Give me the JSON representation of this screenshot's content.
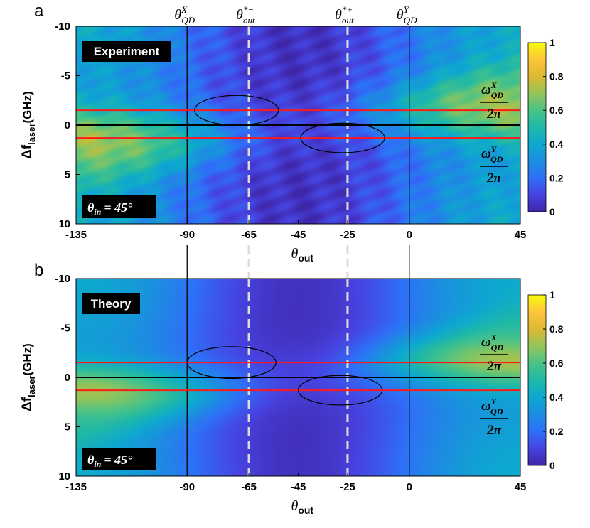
{
  "chart_data": [
    {
      "panel": "a",
      "type": "heatmap",
      "label": "Experiment",
      "condition": {
        "symbol": "θ",
        "sub": "in",
        "value": "= 45°"
      },
      "xlabel": {
        "main": "θ",
        "sub": "out"
      },
      "ylabel": {
        "main": "Δf",
        "sub": "laser",
        "unit": "(GHz)"
      },
      "xlim": [
        -135,
        45
      ],
      "ylim": [
        -10,
        10
      ],
      "xticks": [
        -135,
        -90,
        -65,
        -45,
        -25,
        0,
        45
      ],
      "yticks": [
        -10,
        -5,
        0,
        5,
        10
      ],
      "colorbar": {
        "min": 0,
        "max": 1,
        "ticks": [
          0,
          0.2,
          0.4,
          0.6,
          0.8,
          1
        ]
      },
      "vertical_lines": [
        {
          "x": -90,
          "style": "solid",
          "label": {
            "main": "θ",
            "sup": "X",
            "sub": "QD"
          }
        },
        {
          "x": -65,
          "style": "dashed",
          "label": {
            "main": "θ",
            "sup": "*−",
            "sub": "out"
          }
        },
        {
          "x": -25,
          "style": "dashed",
          "label": {
            "main": "θ",
            "sup": "*+",
            "sub": "out"
          }
        },
        {
          "x": 0,
          "style": "solid",
          "label": {
            "main": "θ",
            "sup": "Y",
            "sub": "QD"
          }
        }
      ],
      "horizontal_lines": [
        {
          "y": -1.5,
          "color": "red",
          "label": {
            "num": "ω",
            "sup": "X",
            "sub": "QD",
            "den": "2π"
          }
        },
        {
          "y": 0,
          "color": "black"
        },
        {
          "y": 1.3,
          "color": "red",
          "label": {
            "num": "ω",
            "sup": "Y",
            "sub": "QD",
            "den": "2π"
          }
        }
      ],
      "ellipses": [
        {
          "cx": -70,
          "cy": -1.5,
          "rx": 17,
          "ry": 1.5
        },
        {
          "cx": -27,
          "cy": 1.3,
          "rx": 17,
          "ry": 1.5
        }
      ]
    },
    {
      "panel": "b",
      "type": "heatmap",
      "label": "Theory",
      "condition": {
        "symbol": "θ",
        "sub": "in",
        "value": "= 45°"
      },
      "xlabel": {
        "main": "θ",
        "sub": "out"
      },
      "ylabel": {
        "main": "Δf",
        "sub": "laser",
        "unit": "(GHz)"
      },
      "xlim": [
        -135,
        45
      ],
      "ylim": [
        -10,
        10
      ],
      "xticks": [
        -135,
        -90,
        -65,
        -45,
        -25,
        0,
        45
      ],
      "yticks": [
        -10,
        -5,
        0,
        5,
        10
      ],
      "colorbar": {
        "min": 0,
        "max": 1,
        "ticks": [
          0,
          0.2,
          0.4,
          0.6,
          0.8,
          1
        ]
      },
      "vertical_lines": [
        {
          "x": -90,
          "style": "solid"
        },
        {
          "x": -65,
          "style": "dashed"
        },
        {
          "x": -25,
          "style": "dashed"
        },
        {
          "x": 0,
          "style": "solid"
        }
      ],
      "horizontal_lines": [
        {
          "y": -1.5,
          "color": "red",
          "label": {
            "num": "ω",
            "sup": "X",
            "sub": "QD",
            "den": "2π"
          }
        },
        {
          "y": 0,
          "color": "black"
        },
        {
          "y": 1.3,
          "color": "red",
          "label": {
            "num": "ω",
            "sup": "Y",
            "sub": "QD",
            "den": "2π"
          }
        }
      ],
      "ellipses": [
        {
          "cx": -72,
          "cy": -1.5,
          "rx": 18,
          "ry": 1.6
        },
        {
          "cx": -28,
          "cy": 1.3,
          "rx": 17,
          "ry": 1.5
        }
      ]
    }
  ]
}
